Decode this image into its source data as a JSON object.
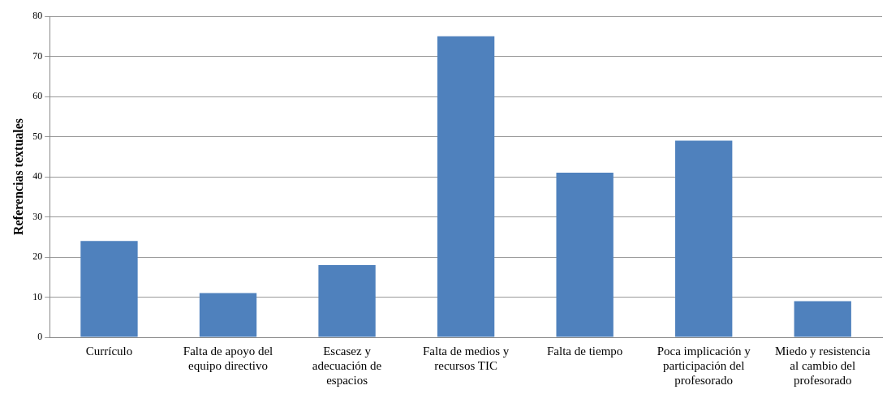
{
  "chart_data": {
    "type": "bar",
    "ylabel": "Referencias textuales",
    "categories": [
      "Currículo",
      "Falta de apoyo del equipo directivo",
      "Escasez y adecuación de espacios",
      "Falta de medios y recursos TIC",
      "Falta de tiempo",
      "Poca implicación y participación del profesorado",
      "Miedo y resistencia al cambio del profesorado"
    ],
    "values": [
      24,
      11,
      18,
      75,
      41,
      49,
      9
    ],
    "color": "#4f81bd",
    "ylim": [
      0,
      80
    ],
    "yticks": [
      0,
      10,
      20,
      30,
      40,
      50,
      60,
      70,
      80
    ],
    "grid": "y"
  }
}
